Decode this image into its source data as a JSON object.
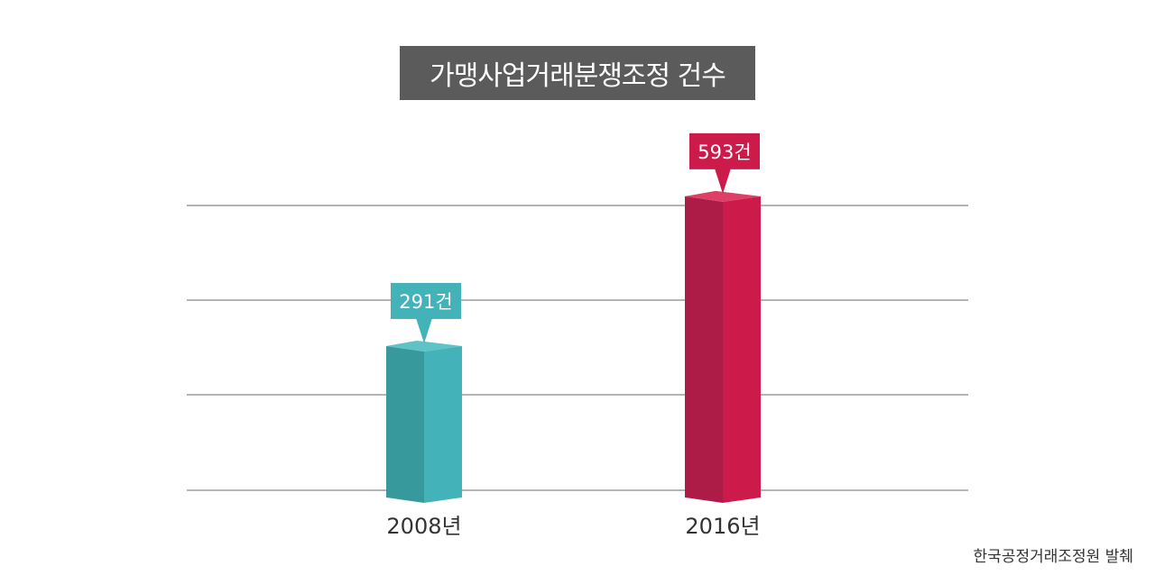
{
  "title": "가맹사업거래분쟁조정 건수",
  "source": "한국공정거래조정원 발췌",
  "colors": {
    "title_bg": "#5b5b5b",
    "gridline": "#888888",
    "series": [
      "#44b2b9",
      "#cc1b4b"
    ],
    "series_dark": [
      "#38999d",
      "#ac1c46"
    ],
    "series_top": [
      "#5ec3c7",
      "#dd3f66"
    ]
  },
  "chart_data": {
    "type": "bar",
    "title": "가맹사업거래분쟁조정 건수",
    "categories": [
      "2008년",
      "2016년"
    ],
    "values": [
      291,
      593
    ],
    "data_labels": [
      "291건",
      "593건"
    ],
    "xlabel": "",
    "ylabel": "",
    "ylim": [
      0,
      600
    ],
    "grid": true,
    "style": "3d-column"
  }
}
